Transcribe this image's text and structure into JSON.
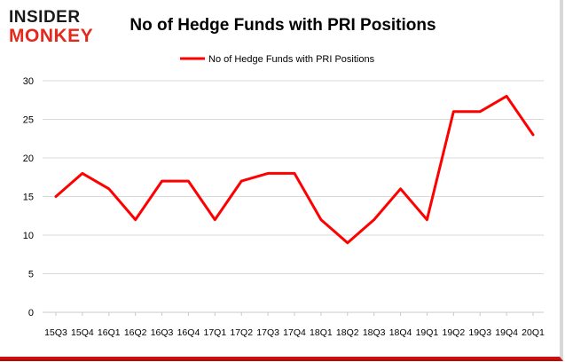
{
  "logo": {
    "line1": "INSIDER",
    "line2": "MONKEY"
  },
  "colors": {
    "series": "#ff0000",
    "grid": "#d9d9d9",
    "axis_text": "#000000",
    "logo_dark": "#1a1a1a",
    "logo_red": "#e3281c"
  },
  "chart_data": {
    "type": "line",
    "title": "No of Hedge Funds with PRI Positions",
    "xlabel": "",
    "ylabel": "",
    "ylim": [
      0,
      30
    ],
    "yticks": [
      0,
      5,
      10,
      15,
      20,
      25,
      30
    ],
    "grid": true,
    "legend_position": "top",
    "categories": [
      "15Q3",
      "15Q4",
      "16Q1",
      "16Q2",
      "16Q3",
      "16Q4",
      "17Q1",
      "17Q2",
      "17Q3",
      "17Q4",
      "18Q1",
      "18Q2",
      "18Q3",
      "18Q4",
      "19Q1",
      "19Q2",
      "19Q3",
      "19Q4",
      "20Q1"
    ],
    "series": [
      {
        "name": "No of Hedge Funds with PRI Positions",
        "values": [
          15,
          18,
          16,
          12,
          17,
          17,
          12,
          17,
          18,
          18,
          12,
          9,
          12,
          16,
          12,
          26,
          26,
          28,
          23
        ]
      }
    ]
  }
}
